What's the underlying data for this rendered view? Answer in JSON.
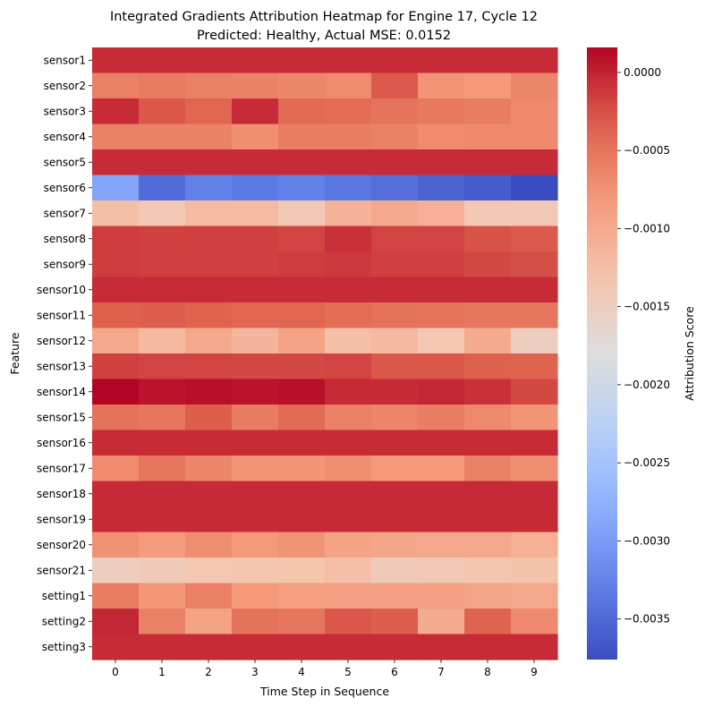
{
  "chart_data": {
    "type": "heatmap",
    "title": "Integrated Gradients Attribution Heatmap for Engine 17, Cycle 12",
    "subtitle": "Predicted: Healthy, Actual MSE: 0.0152",
    "xlabel": "Time Step in Sequence",
    "ylabel": "Feature",
    "colorbar_label": "Attribution Score",
    "colormap": "coolwarm",
    "vmin": -0.00376,
    "vmax": 0.00016,
    "colorbar_ticks": [
      0.0,
      -0.0005,
      -0.001,
      -0.0015,
      -0.002,
      -0.0025,
      -0.003,
      -0.0035
    ],
    "colorbar_tick_labels": [
      "0.0000",
      "−0.0005",
      "−0.0010",
      "−0.0015",
      "−0.0020",
      "−0.0025",
      "−0.0030",
      "−0.0035"
    ],
    "x": [
      "0",
      "1",
      "2",
      "3",
      "4",
      "5",
      "6",
      "7",
      "8",
      "9"
    ],
    "y": [
      "sensor1",
      "sensor2",
      "sensor3",
      "sensor4",
      "sensor5",
      "sensor6",
      "sensor7",
      "sensor8",
      "sensor9",
      "sensor10",
      "sensor11",
      "sensor12",
      "sensor13",
      "sensor14",
      "sensor15",
      "sensor16",
      "sensor17",
      "sensor18",
      "sensor19",
      "sensor20",
      "sensor21",
      "setting1",
      "setting2",
      "setting3"
    ],
    "values": [
      [
        -5e-05,
        -5e-05,
        -5e-05,
        -5e-05,
        -5e-05,
        -5e-05,
        -5e-05,
        -5e-05,
        -5e-05,
        -5e-05
      ],
      [
        -0.0006,
        -0.00055,
        -0.0006,
        -0.00062,
        -0.00066,
        -0.0007,
        -0.0003,
        -0.00078,
        -0.00082,
        -0.00065
      ],
      [
        -5e-05,
        -0.00028,
        -0.00038,
        -5e-05,
        -0.00042,
        -0.00044,
        -0.0005,
        -0.00054,
        -0.00058,
        -0.00068
      ],
      [
        -0.00062,
        -0.00062,
        -0.00062,
        -0.00072,
        -0.00058,
        -0.00058,
        -0.00062,
        -0.0007,
        -0.00068,
        -0.00068
      ],
      [
        -5e-05,
        -5e-05,
        -5e-05,
        -5e-05,
        -5e-05,
        -5e-05,
        -5e-05,
        -5e-05,
        -5e-05,
        -5e-05
      ],
      [
        -0.0029,
        -0.00348,
        -0.00328,
        -0.00334,
        -0.00328,
        -0.00336,
        -0.00344,
        -0.00356,
        -0.00362,
        -0.00376
      ],
      [
        -0.00125,
        -0.00138,
        -0.0012,
        -0.0012,
        -0.00138,
        -0.00112,
        -0.001,
        -0.00108,
        -0.00138,
        -0.00138
      ],
      [
        -0.00014,
        -0.00016,
        -0.00016,
        -0.00016,
        -0.00018,
        -8e-05,
        -0.00018,
        -0.00018,
        -0.00026,
        -0.0003
      ],
      [
        -0.00014,
        -0.00016,
        -0.00016,
        -0.00016,
        -0.00014,
        -0.00012,
        -0.00016,
        -0.00016,
        -0.0002,
        -0.00024
      ],
      [
        -5e-05,
        -5e-05,
        -5e-05,
        -5e-05,
        -5e-05,
        -5e-05,
        -5e-05,
        -5e-05,
        -5e-05,
        -5e-05
      ],
      [
        -0.00034,
        -0.00032,
        -0.00036,
        -0.00038,
        -0.00038,
        -0.00044,
        -0.00048,
        -0.0005,
        -0.00052,
        -0.00052
      ],
      [
        -0.00098,
        -0.00118,
        -0.001,
        -0.00114,
        -0.00092,
        -0.00124,
        -0.00118,
        -0.00136,
        -0.00102,
        -0.0015
      ],
      [
        -0.00016,
        -0.00018,
        -0.00018,
        -0.0002,
        -0.0002,
        -0.00018,
        -0.00028,
        -0.00028,
        -0.00034,
        -0.00036
      ],
      [
        0.00016,
        8e-05,
        0.0001,
        8e-05,
        0.0001,
        -4e-05,
        -4e-05,
        -2e-05,
        -8e-05,
        -0.0002
      ],
      [
        -0.00048,
        -0.00052,
        -0.00032,
        -0.00056,
        -0.00042,
        -0.0006,
        -0.00064,
        -0.00058,
        -0.00068,
        -0.00078
      ],
      [
        -5e-05,
        -5e-05,
        -5e-05,
        -5e-05,
        -5e-05,
        -5e-05,
        -5e-05,
        -5e-05,
        -5e-05,
        -5e-05
      ],
      [
        -0.0007,
        -0.00052,
        -0.00066,
        -0.00078,
        -0.00078,
        -0.00072,
        -0.00082,
        -0.00082,
        -0.0006,
        -0.00072
      ],
      [
        -4e-05,
        -4e-05,
        -4e-05,
        -4e-05,
        -4e-05,
        -4e-05,
        -4e-05,
        -4e-05,
        -4e-05,
        -4e-05
      ],
      [
        -4e-05,
        -4e-05,
        -4e-05,
        -4e-05,
        -4e-05,
        -4e-05,
        -4e-05,
        -4e-05,
        -4e-05,
        -4e-05
      ],
      [
        -0.00074,
        -0.00084,
        -0.00072,
        -0.00082,
        -0.00076,
        -0.00092,
        -0.00096,
        -0.00098,
        -0.001,
        -0.00108
      ],
      [
        -0.00148,
        -0.00142,
        -0.00136,
        -0.00134,
        -0.00132,
        -0.00124,
        -0.00142,
        -0.00138,
        -0.00134,
        -0.0013
      ],
      [
        -0.00058,
        -0.0008,
        -0.0006,
        -0.00082,
        -0.00086,
        -0.00088,
        -0.00088,
        -0.00088,
        -0.00094,
        -0.00098
      ],
      [
        -2e-05,
        -0.0006,
        -0.00092,
        -0.00048,
        -0.00052,
        -0.00028,
        -0.00032,
        -0.00102,
        -0.00036,
        -0.00068
      ],
      [
        -5e-05,
        -5e-05,
        -5e-05,
        -5e-05,
        -5e-05,
        -5e-05,
        -5e-05,
        -5e-05,
        -5e-05,
        -5e-05
      ]
    ]
  }
}
